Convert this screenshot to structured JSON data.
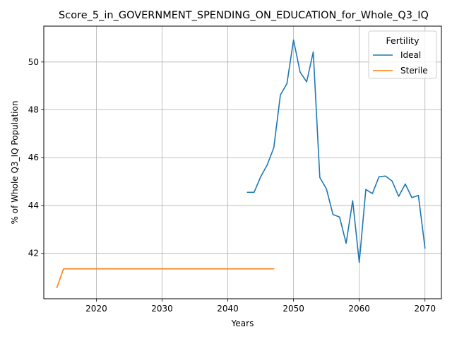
{
  "chart_data": {
    "type": "line",
    "title": "Score_5_in_GOVERNMENT_SPENDING_ON_EDUCATION_for_Whole_Q3_IQ",
    "xlabel": "Years",
    "ylabel": "% of Whole Q3_IQ Population",
    "xlim": [
      2012,
      2072.5
    ],
    "ylim": [
      40.1,
      51.5
    ],
    "xticks": [
      2020,
      2030,
      2040,
      2050,
      2060,
      2070
    ],
    "yticks": [
      42,
      44,
      46,
      48,
      50
    ],
    "grid": true,
    "legend": {
      "title": "Fertility",
      "placement": "top-right"
    },
    "series": [
      {
        "name": "Ideal",
        "color": "#1f77b4",
        "x": [
          2043,
          2044,
          2045,
          2046,
          2047,
          2048,
          2049,
          2050,
          2051,
          2052,
          2053,
          2054,
          2055,
          2056,
          2057,
          2058,
          2059,
          2060,
          2061,
          2062,
          2063,
          2064,
          2065,
          2066,
          2067,
          2068,
          2069,
          2070
        ],
        "y": [
          44.55,
          44.55,
          45.2,
          45.7,
          46.42,
          48.62,
          49.1,
          50.92,
          49.58,
          49.17,
          50.42,
          45.17,
          44.7,
          43.62,
          43.52,
          42.42,
          44.2,
          41.62,
          44.67,
          44.5,
          45.2,
          45.23,
          45.02,
          44.38,
          44.9,
          44.33,
          44.42,
          42.22
        ]
      },
      {
        "name": "Sterile",
        "color": "#ff7f0e",
        "x": [
          2014,
          2015,
          2016,
          2017,
          2018,
          2019,
          2020,
          2021,
          2022,
          2023,
          2024,
          2025,
          2026,
          2027,
          2028,
          2029,
          2030,
          2031,
          2032,
          2033,
          2034,
          2035,
          2036,
          2037,
          2038,
          2039,
          2040,
          2041,
          2042,
          2043,
          2044,
          2045,
          2046,
          2047
        ],
        "y": [
          40.57,
          41.35,
          41.35,
          41.35,
          41.35,
          41.35,
          41.35,
          41.35,
          41.35,
          41.35,
          41.35,
          41.35,
          41.35,
          41.35,
          41.35,
          41.35,
          41.35,
          41.35,
          41.35,
          41.35,
          41.35,
          41.35,
          41.35,
          41.35,
          41.35,
          41.35,
          41.35,
          41.35,
          41.35,
          41.35,
          41.35,
          41.35,
          41.35,
          41.35
        ]
      }
    ]
  }
}
